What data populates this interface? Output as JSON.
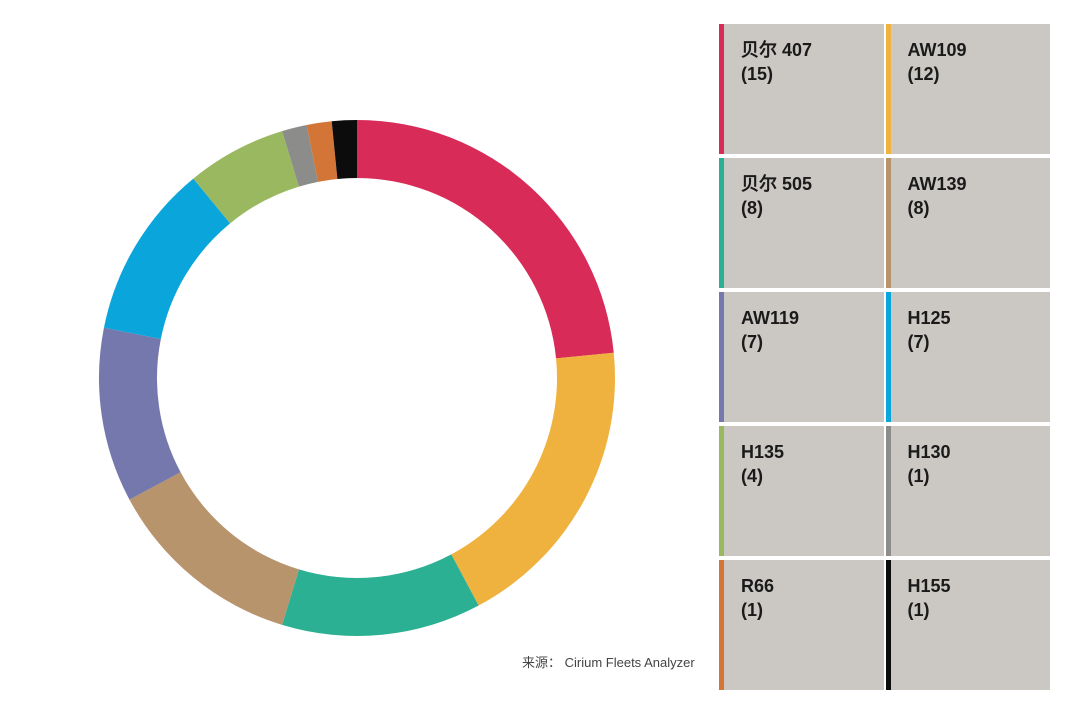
{
  "chart_data": {
    "type": "pie",
    "variant": "donut",
    "legend_position": "right",
    "series": [
      {
        "name": "贝尔 407",
        "count_label": "(15)",
        "value": 15,
        "color": "#d92b58"
      },
      {
        "name": "AW109",
        "count_label": "(12)",
        "value": 12,
        "color": "#f0b23f"
      },
      {
        "name": "贝尔 505",
        "count_label": "(8)",
        "value": 8,
        "color": "#2bb093"
      },
      {
        "name": "AW139",
        "count_label": "(8)",
        "value": 8,
        "color": "#b8946d"
      },
      {
        "name": "AW119",
        "count_label": "(7)",
        "value": 7,
        "color": "#7478ac"
      },
      {
        "name": "H125",
        "count_label": "(7)",
        "value": 7,
        "color": "#0aa5db"
      },
      {
        "name": "H135",
        "count_label": "(4)",
        "value": 4,
        "color": "#9ab860"
      },
      {
        "name": "H130",
        "count_label": "(1)",
        "value": 1,
        "color": "#8c8c8a"
      },
      {
        "name": "R66",
        "count_label": "(1)",
        "value": 1,
        "color": "#d37536"
      },
      {
        "name": "H155",
        "count_label": "(1)",
        "value": 1,
        "color": "#0c0c0c"
      }
    ],
    "source": "来源： Cirium Fleets Analyzer"
  }
}
